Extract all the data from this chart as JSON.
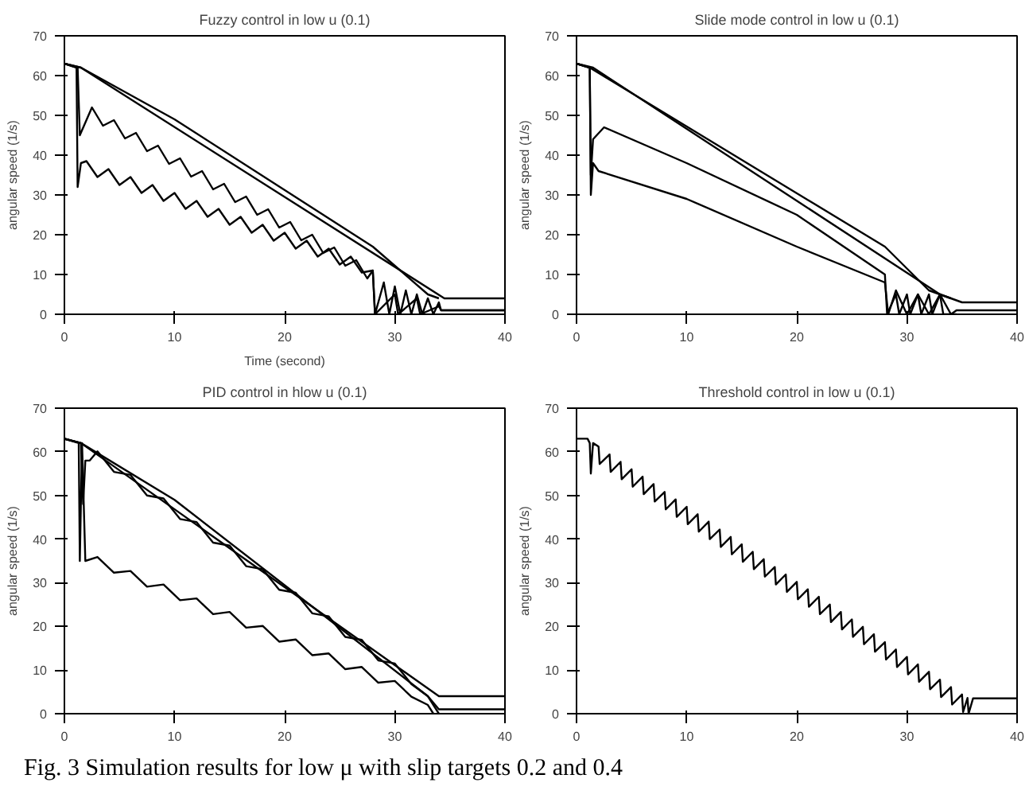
{
  "chart_data": [
    {
      "type": "line",
      "title": "Fuzzy control in low u (0.1)",
      "xlabel": "Time (second)",
      "ylabel": "angular speed (1/s)",
      "xlim": [
        0,
        40
      ],
      "ylim": [
        0,
        70
      ],
      "xticks": [
        0,
        10,
        20,
        30,
        40
      ],
      "yticks": [
        0,
        10,
        20,
        30,
        40,
        50,
        60,
        70
      ],
      "grid": false,
      "line_style": "solid",
      "marker": "none",
      "series": [
        {
          "color": "#000000",
          "x": [
            0,
            1.5,
            34.5,
            40
          ],
          "values": [
            63,
            62,
            4,
            4
          ]
        },
        {
          "color": "#000000",
          "x": [
            0,
            1.5,
            10,
            28,
            33,
            34
          ],
          "values": [
            63,
            62,
            49,
            17,
            5,
            4
          ]
        },
        {
          "color": "#000000",
          "x": [
            0,
            1.2,
            1.4,
            2.5,
            3.5,
            4.5,
            5.5,
            6.5,
            7.5,
            8.5,
            9.5,
            10.5,
            11.5,
            12.5,
            13.5,
            14.5,
            15.5,
            16.5,
            17.5,
            18.5,
            19.5,
            20.5,
            21.5,
            22.5,
            23.5,
            24.5,
            25.5,
            26.5,
            27.5,
            28,
            28.2,
            29,
            29.5,
            30,
            30.5,
            31,
            31.5,
            32,
            32.5,
            33,
            33.5,
            34,
            34.2,
            40
          ],
          "values": [
            63,
            62,
            45,
            52,
            47.4,
            48.8,
            44.2,
            45.6,
            41,
            42.4,
            37.8,
            39.2,
            34.6,
            36,
            31.4,
            32.8,
            28.2,
            29.6,
            25,
            26.4,
            21.8,
            23.2,
            18.6,
            20,
            15.4,
            16.8,
            12.2,
            13.6,
            9,
            11,
            0,
            8,
            0,
            7,
            0,
            6,
            0,
            5,
            0,
            4,
            0,
            3,
            1,
            1
          ]
        },
        {
          "color": "#000000",
          "x": [
            0,
            1.1,
            1.2,
            1.5,
            2,
            3,
            4,
            5,
            6,
            7,
            8,
            9,
            10,
            11,
            12,
            13,
            14,
            15,
            16,
            17,
            18,
            19,
            20,
            21,
            22,
            23,
            24,
            25,
            26,
            27,
            28,
            28.2,
            30,
            30.3,
            32,
            32.3,
            34,
            34.2,
            40
          ],
          "values": [
            63,
            62,
            32,
            38,
            38.5,
            34.5,
            36.5,
            32.5,
            34.5,
            30.5,
            32.5,
            28.5,
            30.5,
            26.5,
            28.5,
            24.5,
            26.5,
            22.5,
            24.5,
            20.5,
            22.5,
            18.5,
            20.5,
            16.5,
            18.5,
            14.5,
            16.5,
            12.5,
            14.5,
            10.5,
            11,
            0,
            5,
            0,
            4,
            0,
            2,
            1,
            1
          ]
        }
      ]
    },
    {
      "type": "line",
      "title": "Slide mode control in low u (0.1)",
      "ylabel": "angular speed (1/s)",
      "xlim": [
        0,
        40
      ],
      "ylim": [
        0,
        70
      ],
      "xticks": [
        0,
        10,
        20,
        30,
        40
      ],
      "yticks": [
        0,
        10,
        20,
        30,
        40,
        50,
        60,
        70
      ],
      "grid": false,
      "line_style": "solid",
      "marker": "none",
      "series": [
        {
          "color": "#000000",
          "x": [
            0,
            1.5,
            33,
            35,
            40
          ],
          "values": [
            63,
            62,
            5,
            3,
            3
          ]
        },
        {
          "color": "#000000",
          "x": [
            0,
            1.2,
            28,
            32,
            34
          ],
          "values": [
            63,
            62,
            17,
            6,
            4
          ]
        },
        {
          "color": "#000000",
          "x": [
            0,
            1.2,
            1.3,
            1.5,
            2.5,
            10,
            20,
            28,
            28.2,
            29,
            29.3,
            30,
            30.3,
            31,
            31.3,
            32,
            32.3,
            33,
            33.3,
            34.5
          ],
          "values": [
            63,
            62,
            35,
            44,
            47,
            38,
            25,
            10,
            0,
            5,
            0,
            5,
            0,
            5,
            0,
            5,
            0,
            5,
            0,
            0
          ]
        },
        {
          "color": "#000000",
          "x": [
            0,
            1.2,
            1.3,
            1.5,
            2,
            10,
            20,
            28,
            28.3,
            29,
            30,
            31,
            32,
            33,
            34,
            34.5,
            40
          ],
          "values": [
            63,
            62,
            30,
            38,
            36,
            29,
            17,
            8,
            0,
            6,
            0,
            5,
            0,
            5,
            0,
            1,
            1
          ]
        }
      ]
    },
    {
      "type": "line",
      "title": "PID control in hlow u (0.1)",
      "ylabel": "angular speed (1/s)",
      "xlim": [
        0,
        40
      ],
      "ylim": [
        0,
        70
      ],
      "xticks": [
        0,
        10,
        20,
        30,
        40
      ],
      "yticks": [
        0,
        10,
        20,
        30,
        40,
        50,
        60,
        70
      ],
      "grid": false,
      "line_style": "solid",
      "marker": "none",
      "series": [
        {
          "color": "#000000",
          "x": [
            0,
            1.5,
            34,
            40
          ],
          "values": [
            63,
            62,
            4,
            4
          ]
        },
        {
          "color": "#000000",
          "x": [
            0,
            1.5,
            10,
            33,
            34,
            40
          ],
          "values": [
            63,
            62,
            49,
            4,
            1,
            1
          ]
        },
        {
          "color": "#000000",
          "x": [
            0,
            1.5,
            1.7,
            1.9,
            2.3,
            3,
            4.5,
            6,
            7.5,
            9,
            10.5,
            12,
            13.5,
            15,
            16.5,
            18,
            19.5,
            21,
            22.5,
            24,
            25.5,
            27,
            28.5,
            30,
            31.5,
            33,
            33.5,
            34
          ],
          "values": [
            63,
            62,
            48,
            58,
            58,
            60.1,
            55.4,
            54.7,
            50,
            49.3,
            44.6,
            43.9,
            39.2,
            38.5,
            33.8,
            33.1,
            28.4,
            27.7,
            23,
            22.3,
            17.6,
            16.9,
            12.2,
            11.5,
            6.8,
            4,
            2,
            0
          ]
        },
        {
          "color": "#000000",
          "x": [
            0,
            1.3,
            1.4,
            1.6,
            1.9,
            3,
            4.5,
            6,
            7.5,
            9,
            10.5,
            12,
            13.5,
            15,
            16.5,
            18,
            19.5,
            21,
            22.5,
            24,
            25.5,
            27,
            28.5,
            30,
            31.5,
            33,
            33.5
          ],
          "values": [
            63,
            62,
            35,
            62,
            35,
            35.9,
            32.3,
            32.7,
            29.1,
            29.6,
            26,
            26.4,
            22.8,
            23.3,
            19.7,
            20.1,
            16.5,
            17,
            13.4,
            13.8,
            10.2,
            10.7,
            7.1,
            7.5,
            3.9,
            2,
            0
          ]
        }
      ]
    },
    {
      "type": "line",
      "title": "Threshold control in low u (0.1)",
      "ylabel": "angular speed (1/s)",
      "xlim": [
        0,
        40
      ],
      "ylim": [
        0,
        70
      ],
      "xticks": [
        0,
        10,
        20,
        30,
        40
      ],
      "yticks": [
        0,
        10,
        20,
        30,
        40,
        50,
        60,
        70
      ],
      "grid": false,
      "line_style": "solid",
      "marker": "none",
      "annotations": [
        "Fig. 3   Simulation results for low μ with slip targets 0.2 and  0.4"
      ],
      "series": [
        {
          "color": "#000000",
          "x": [
            0,
            1,
            1.2,
            1.3,
            1.5,
            2,
            2.1,
            3,
            3.1,
            4,
            4.1,
            5,
            5.1,
            6,
            6.1,
            7,
            7.1,
            8,
            8.1,
            9,
            9.1,
            10,
            10.1,
            11,
            11.1,
            12,
            12.1,
            13,
            13.1,
            14,
            14.1,
            15,
            15.1,
            16,
            16.1,
            17,
            17.1,
            18,
            18.1,
            19,
            19.1,
            20,
            20.1,
            21,
            21.1,
            22,
            22.1,
            23,
            23.1,
            24,
            24.1,
            25,
            25.1,
            26,
            26.1,
            27,
            27.1,
            28,
            28.1,
            29,
            29.1,
            30,
            30.1,
            31,
            31.1,
            32,
            32.1,
            33,
            33.1,
            34,
            34.1,
            35,
            35.1,
            35.5,
            35.6,
            36,
            40
          ],
          "values": [
            63,
            63,
            62,
            55,
            62,
            61.2,
            57.2,
            59.4,
            55.4,
            57.7,
            53.7,
            56,
            52,
            54.3,
            50.3,
            52.6,
            48.6,
            50.8,
            46.8,
            49.1,
            45.1,
            47.4,
            43.4,
            45.7,
            41.7,
            44,
            40,
            42.2,
            38.2,
            40.5,
            36.5,
            38.8,
            34.8,
            37.1,
            33.1,
            35.4,
            31.4,
            33.6,
            29.6,
            31.9,
            27.9,
            30.2,
            26.2,
            28.5,
            24.5,
            26.8,
            22.8,
            25,
            21,
            23.3,
            19.3,
            21.6,
            17.6,
            19.9,
            15.9,
            18.2,
            14.2,
            16.4,
            12.4,
            14.7,
            10.7,
            13,
            9,
            11.3,
            7.3,
            9.6,
            5.6,
            7.8,
            3.8,
            6.1,
            2.1,
            4.4,
            0.4,
            3.6,
            0,
            3.5,
            3.5
          ]
        }
      ]
    }
  ]
}
